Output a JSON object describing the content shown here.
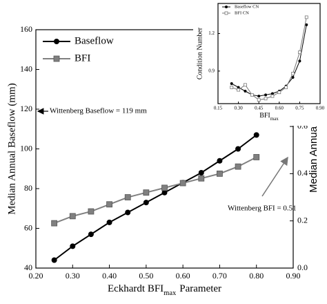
{
  "chart_data": [
    {
      "type": "line",
      "x_label_parts": [
        "Eckhardt BFI",
        "max",
        "Parameter"
      ],
      "y_label": "Median Annual Baseflow (mm)",
      "y2_label": "Median Annual BFI",
      "x": [
        0.25,
        0.3,
        0.35,
        0.4,
        0.45,
        0.5,
        0.55,
        0.6,
        0.65,
        0.7,
        0.75,
        0.8
      ],
      "series": [
        {
          "name": "Baseflow",
          "color": "#000000",
          "marker": "circle",
          "values": [
            44,
            51,
            57,
            63,
            68,
            73,
            78,
            83,
            88,
            94,
            100,
            107
          ]
        },
        {
          "name": "BFI",
          "color": "#808080",
          "marker": "square",
          "axis": "y2",
          "values": [
            0.19,
            0.22,
            0.24,
            0.27,
            0.3,
            0.32,
            0.34,
            0.36,
            0.38,
            0.4,
            0.43,
            0.47
          ]
        }
      ],
      "xlim": [
        0.2,
        0.9
      ],
      "xticks": [
        {
          "value": 0.2,
          "label": "0.20"
        },
        {
          "value": 0.3,
          "label": "0.30"
        },
        {
          "value": 0.4,
          "label": "0.40"
        },
        {
          "value": 0.5,
          "label": "0.50"
        },
        {
          "value": 0.6,
          "label": "0.60"
        },
        {
          "value": 0.7,
          "label": "0.70"
        },
        {
          "value": 0.8,
          "label": "0.80"
        },
        {
          "value": 0.9,
          "label": "0.90"
        }
      ],
      "ylim": [
        40,
        160
      ],
      "yticks": [
        40,
        60,
        80,
        100,
        120,
        140,
        160
      ],
      "y2lim": [
        0,
        1.01
      ],
      "y2ticks": [
        {
          "value": 0,
          "label": "0.0"
        },
        0.2,
        0.4,
        0.6
      ],
      "annotations": [
        "Wittenberg Baseflow = 119 mm",
        "Wittenberg BFI = 0.51"
      ]
    },
    {
      "type": "line",
      "x_label_parts": [
        "BFI",
        "max"
      ],
      "y_label": "Condition Number",
      "x": [
        0.25,
        0.3,
        0.35,
        0.4,
        0.45,
        0.5,
        0.55,
        0.6,
        0.65,
        0.7,
        0.75,
        0.8
      ],
      "series": [
        {
          "name": "Baseflow CN",
          "color": "#000000",
          "marker": "circle",
          "values": [
            0.8,
            0.77,
            0.74,
            0.71,
            0.7,
            0.71,
            0.72,
            0.74,
            0.78,
            0.85,
            0.98,
            1.27
          ]
        },
        {
          "name": "BFI CN",
          "color": "#777777",
          "marker": "hollow-square",
          "values": [
            0.77,
            0.75,
            0.79,
            0.71,
            0.67,
            0.68,
            0.7,
            0.73,
            0.77,
            0.88,
            1.05,
            1.33
          ]
        }
      ],
      "xlim": [
        0.15,
        0.9
      ],
      "xticks": [
        0.15,
        {
          "value": 0.3,
          "label": "0.30"
        },
        0.45,
        {
          "value": 0.6,
          "label": "0.60"
        },
        0.75,
        {
          "value": 0.9,
          "label": "0.90"
        }
      ],
      "ylim": [
        0.64,
        1.44
      ],
      "yticks": [
        0.9,
        1.2
      ]
    }
  ]
}
